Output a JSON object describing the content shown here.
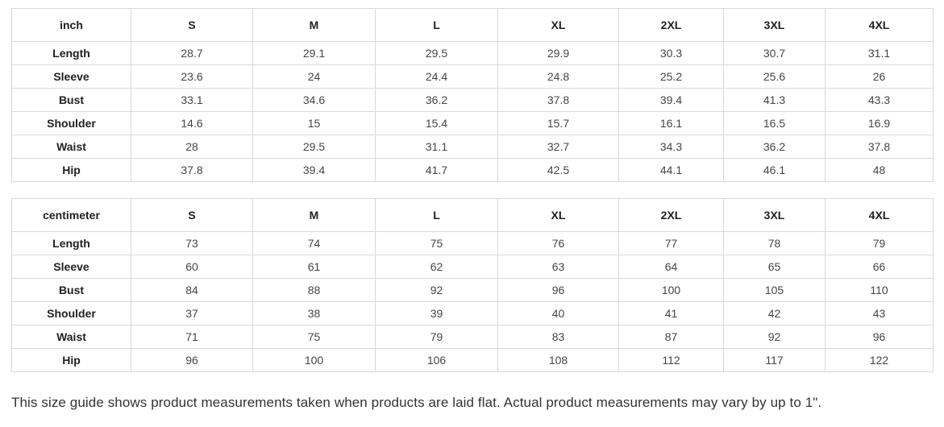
{
  "colors": {
    "table_border": "#d9d9d9",
    "header_text": "#212121",
    "value_text": "#454545",
    "note_text": "#333333",
    "background": "#ffffff"
  },
  "size_tables": [
    {
      "unit_label": "inch",
      "columns": [
        "S",
        "M",
        "L",
        "XL",
        "2XL",
        "3XL",
        "4XL"
      ],
      "rows": [
        {
          "label": "Length",
          "values": [
            "28.7",
            "29.1",
            "29.5",
            "29.9",
            "30.3",
            "30.7",
            "31.1"
          ]
        },
        {
          "label": "Sleeve",
          "values": [
            "23.6",
            "24",
            "24.4",
            "24.8",
            "25.2",
            "25.6",
            "26"
          ]
        },
        {
          "label": "Bust",
          "values": [
            "33.1",
            "34.6",
            "36.2",
            "37.8",
            "39.4",
            "41.3",
            "43.3"
          ]
        },
        {
          "label": "Shoulder",
          "values": [
            "14.6",
            "15",
            "15.4",
            "15.7",
            "16.1",
            "16.5",
            "16.9"
          ]
        },
        {
          "label": "Waist",
          "values": [
            "28",
            "29.5",
            "31.1",
            "32.7",
            "34.3",
            "36.2",
            "37.8"
          ]
        },
        {
          "label": "Hip",
          "values": [
            "37.8",
            "39.4",
            "41.7",
            "42.5",
            "44.1",
            "46.1",
            "48"
          ]
        }
      ]
    },
    {
      "unit_label": "centimeter",
      "columns": [
        "S",
        "M",
        "L",
        "XL",
        "2XL",
        "3XL",
        "4XL"
      ],
      "rows": [
        {
          "label": "Length",
          "values": [
            "73",
            "74",
            "75",
            "76",
            "77",
            "78",
            "79"
          ]
        },
        {
          "label": "Sleeve",
          "values": [
            "60",
            "61",
            "62",
            "63",
            "64",
            "65",
            "66"
          ]
        },
        {
          "label": "Bust",
          "values": [
            "84",
            "88",
            "92",
            "96",
            "100",
            "105",
            "110"
          ]
        },
        {
          "label": "Shoulder",
          "values": [
            "37",
            "38",
            "39",
            "40",
            "41",
            "42",
            "43"
          ]
        },
        {
          "label": "Waist",
          "values": [
            "71",
            "75",
            "79",
            "83",
            "87",
            "92",
            "96"
          ]
        },
        {
          "label": "Hip",
          "values": [
            "96",
            "100",
            "106",
            "108",
            "112",
            "117",
            "122"
          ]
        }
      ]
    }
  ],
  "footer_note": "This size guide shows product measurements taken when products are laid flat. Actual product measurements may vary by up to 1\"."
}
